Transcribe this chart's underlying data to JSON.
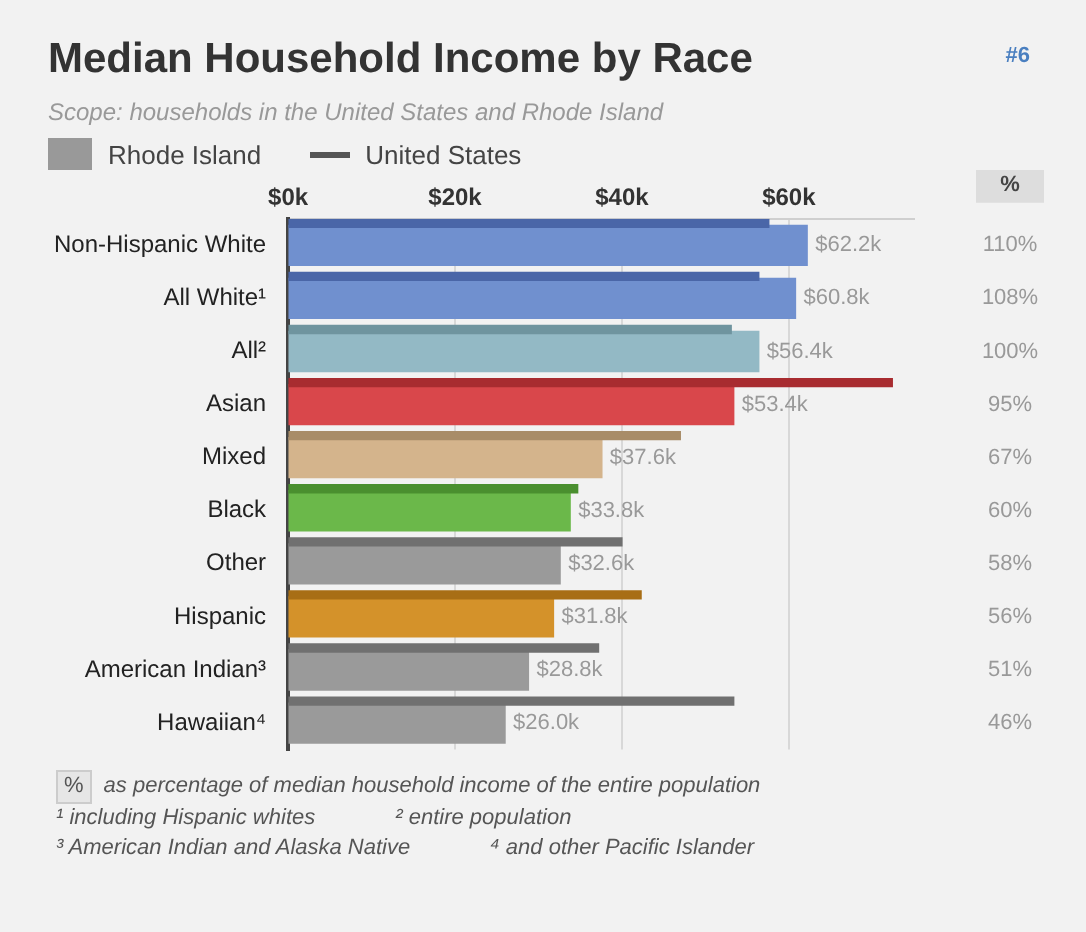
{
  "chart_data": {
    "type": "bar",
    "orientation": "horizontal",
    "title": "Median Household Income by Race",
    "subtitle": "Scope: households in the United States and Rhode Island",
    "categories": [
      "Non-Hispanic White",
      "All White¹",
      "All²",
      "Asian",
      "Mixed",
      "Black",
      "Other",
      "Hispanic",
      "American Indian³",
      "Hawaiian⁴"
    ],
    "series": [
      {
        "name": "Rhode Island",
        "color": "#999999",
        "colors": [
          "#7090cf",
          "#7090cf",
          "#93b9c5",
          "#d9474b",
          "#d4b48c",
          "#6bb84a",
          "#9a9a9a",
          "#d4922a",
          "#9a9a9a",
          "#9a9a9a"
        ],
        "values": [
          62.2,
          60.8,
          56.4,
          53.4,
          37.6,
          33.8,
          32.6,
          31.8,
          28.8,
          26.0
        ],
        "value_labels": [
          "$62.2k",
          "$60.8k",
          "$56.4k",
          "$53.4k",
          "$37.6k",
          "$33.8k",
          "$32.6k",
          "$31.8k",
          "$28.8k",
          "$26.0k"
        ]
      },
      {
        "name": "United States",
        "color": "#555555",
        "colors": [
          "#4a66a8",
          "#4a66a8",
          "#6f949f",
          "#a82c30",
          "#a88c68",
          "#4a8f2f",
          "#707070",
          "#a86e15",
          "#707070",
          "#707070"
        ],
        "values": [
          57.6,
          56.4,
          53.1,
          72.4,
          47.0,
          34.7,
          40.0,
          42.3,
          37.2,
          53.4
        ]
      }
    ],
    "xlim": [
      0,
      75
    ],
    "xticks": [
      {
        "value": 0,
        "label": "$0k"
      },
      {
        "value": 20,
        "label": "$20k"
      },
      {
        "value": 40,
        "label": "$40k"
      },
      {
        "value": 60,
        "label": "$60k"
      }
    ],
    "grid": "x",
    "legend": "top left",
    "annotations": [
      "#6",
      "%",
      "110%",
      "108%",
      "100%",
      "95%",
      "67%",
      "60%",
      "58%",
      "56%",
      "51%",
      "46%",
      "as percentage of median household income of the entire population",
      "¹ including Hispanic whites",
      "² entire population",
      "³ American Indian and Alaska Native",
      "⁴ and other Pacific Islander"
    ]
  }
}
